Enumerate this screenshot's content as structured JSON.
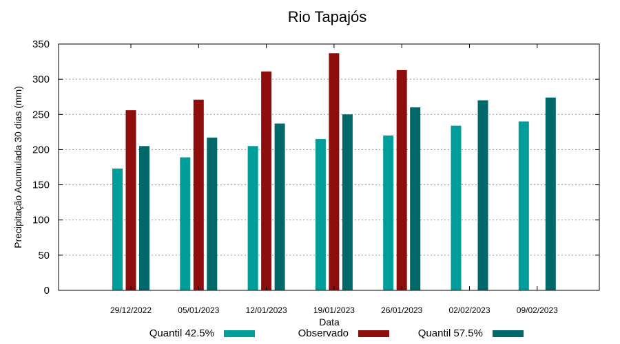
{
  "chart_data": {
    "type": "bar",
    "title": "Rio Tapajós",
    "xlabel": "Data",
    "ylabel": "Precipitação Acumulada 30 dias (mm)",
    "ylim": [
      0,
      350
    ],
    "yticks": [
      0,
      50,
      100,
      150,
      200,
      250,
      300,
      350
    ],
    "grid": true,
    "legend_position": "bottom",
    "categories": [
      "29/12/2022",
      "05/01/2023",
      "12/01/2023",
      "19/01/2023",
      "26/01/2023",
      "02/02/2023",
      "09/02/2023"
    ],
    "series": [
      {
        "name": "Quantil 42.5%",
        "color": "#009e9a",
        "values": [
          173,
          189,
          205,
          215,
          220,
          234,
          240
        ]
      },
      {
        "name": "Observado",
        "color": "#8e0e0e",
        "values": [
          256,
          271,
          311,
          337,
          313,
          null,
          null
        ]
      },
      {
        "name": "Quantil 57.5%",
        "color": "#006868",
        "values": [
          205,
          217,
          237,
          250,
          260,
          270,
          274
        ]
      }
    ]
  }
}
